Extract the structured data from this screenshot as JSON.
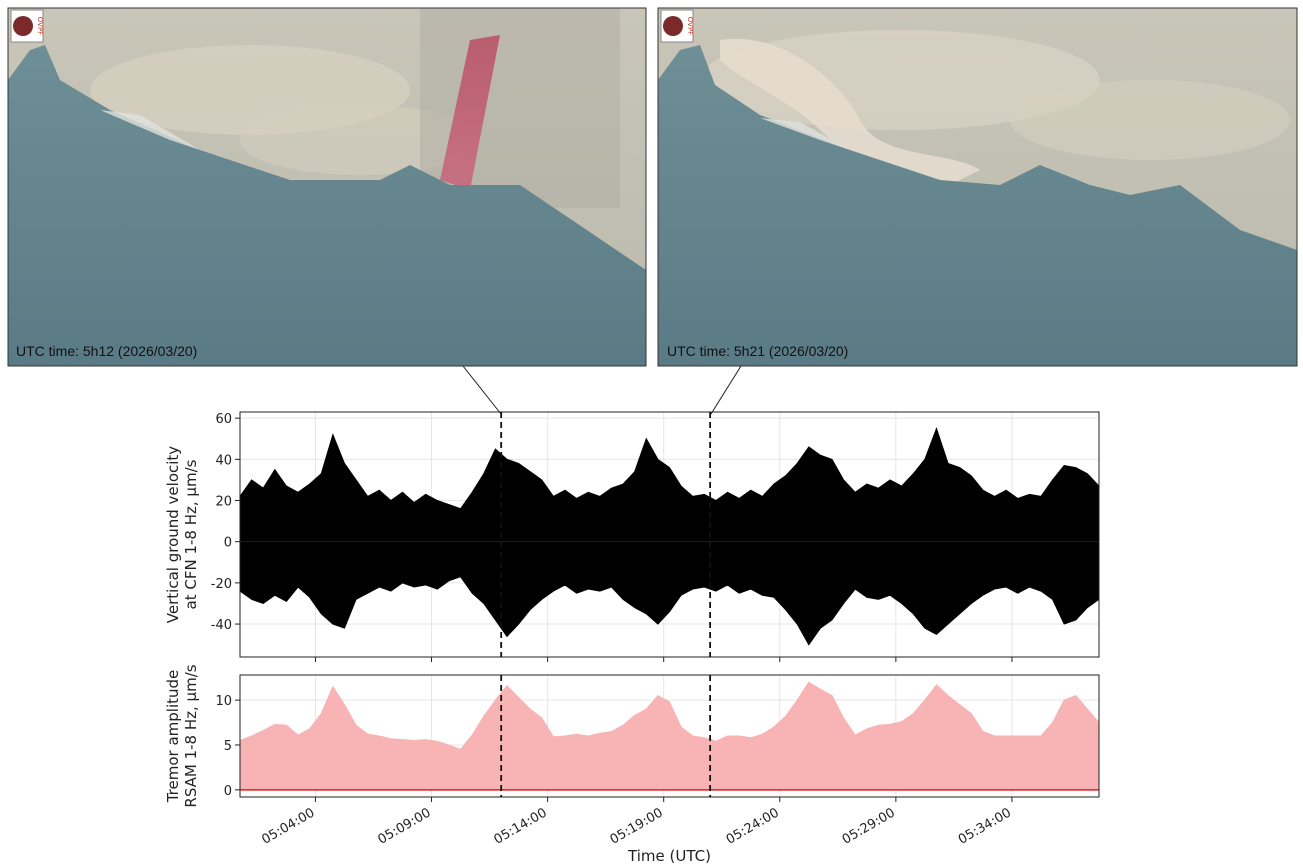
{
  "photos": [
    {
      "caption": "UTC time: 5h12 (2026/03/20)",
      "logo": "OVPF"
    },
    {
      "caption": "UTC time: 5h21 (2026/03/20)",
      "logo": "OVPF"
    }
  ],
  "chart_data": [
    {
      "type": "area",
      "ylabel": [
        "Vertical ground velocity",
        "at CFN 1-8 Hz, µm/s"
      ],
      "x": [
        "05:00:45",
        "05:01:15",
        "05:01:45",
        "05:02:15",
        "05:02:45",
        "05:03:15",
        "05:03:45",
        "05:04:15",
        "05:04:45",
        "05:05:15",
        "05:05:45",
        "05:06:15",
        "05:06:45",
        "05:07:15",
        "05:07:45",
        "05:08:15",
        "05:08:45",
        "05:09:15",
        "05:09:45",
        "05:10:15",
        "05:10:45",
        "05:11:15",
        "05:11:45",
        "05:12:15",
        "05:12:45",
        "05:13:15",
        "05:13:45",
        "05:14:15",
        "05:14:45",
        "05:15:15",
        "05:15:45",
        "05:16:15",
        "05:16:45",
        "05:17:15",
        "05:17:45",
        "05:18:15",
        "05:18:45",
        "05:19:15",
        "05:19:45",
        "05:20:15",
        "05:20:45",
        "05:21:15",
        "05:21:45",
        "05:22:15",
        "05:22:45",
        "05:23:15",
        "05:23:45",
        "05:24:15",
        "05:24:45",
        "05:25:15",
        "05:25:45",
        "05:26:15",
        "05:26:45",
        "05:27:15",
        "05:27:45",
        "05:28:15",
        "05:28:45",
        "05:29:15",
        "05:29:45",
        "05:30:15",
        "05:30:45",
        "05:31:15",
        "05:31:45",
        "05:32:15",
        "05:32:45",
        "05:33:15",
        "05:33:45",
        "05:34:15",
        "05:34:45",
        "05:35:15",
        "05:35:45",
        "05:36:15",
        "05:36:45",
        "05:37:15",
        "05:37:45"
      ],
      "series": [
        {
          "color": "#000000",
          "values": [
            22,
            30,
            26,
            35,
            27,
            24,
            28,
            33,
            52,
            38,
            30,
            22,
            25,
            20,
            24,
            19,
            23,
            20,
            18,
            16,
            24,
            33,
            45,
            40,
            38,
            34,
            30,
            22,
            25,
            21,
            24,
            22,
            26,
            28,
            34,
            50,
            40,
            36,
            27,
            22,
            23,
            20,
            24,
            21,
            25,
            22,
            28,
            32,
            38,
            46,
            42,
            40,
            30,
            24,
            28,
            26,
            30,
            27,
            33,
            40,
            55,
            38,
            36,
            32,
            25,
            22,
            25,
            21,
            23,
            22,
            30,
            37,
            36,
            33,
            27
          ]
        },
        {
          "color": "#000000",
          "values": [
            -24,
            -28,
            -30,
            -26,
            -29,
            -22,
            -27,
            -35,
            -40,
            -42,
            -28,
            -25,
            -22,
            -24,
            -20,
            -22,
            -21,
            -23,
            -19,
            -17,
            -25,
            -30,
            -38,
            -46,
            -40,
            -33,
            -28,
            -24,
            -21,
            -25,
            -23,
            -24,
            -22,
            -28,
            -32,
            -35,
            -40,
            -34,
            -26,
            -23,
            -22,
            -24,
            -21,
            -25,
            -23,
            -26,
            -27,
            -33,
            -40,
            -50,
            -42,
            -38,
            -30,
            -23,
            -27,
            -28,
            -26,
            -30,
            -35,
            -42,
            -45,
            -40,
            -35,
            -30,
            -26,
            -23,
            -22,
            -25,
            -22,
            -24,
            -28,
            -40,
            -38,
            -32,
            -28
          ]
        }
      ],
      "xlim": [
        "05:00:45",
        "05:37:45"
      ],
      "xticks": [
        "05:04:00",
        "05:09:00",
        "05:14:00",
        "05:19:00",
        "05:24:00",
        "05:29:00",
        "05:34:00"
      ],
      "xtick_labels": false,
      "ylim": [
        -56,
        63
      ],
      "yticks": [
        -40,
        -20,
        0,
        20,
        40,
        60
      ],
      "grid": true,
      "vlines": [
        "05:12:00",
        "05:21:00"
      ]
    },
    {
      "type": "area",
      "ylabel": [
        "Tremor amplitude",
        "RSAM 1-8 Hz, µm/s"
      ],
      "xlabel": "Time (UTC)",
      "x": [
        "05:00:45",
        "05:01:15",
        "05:01:45",
        "05:02:15",
        "05:02:45",
        "05:03:15",
        "05:03:45",
        "05:04:15",
        "05:04:45",
        "05:05:15",
        "05:05:45",
        "05:06:15",
        "05:06:45",
        "05:07:15",
        "05:07:45",
        "05:08:15",
        "05:08:45",
        "05:09:15",
        "05:09:45",
        "05:10:15",
        "05:10:45",
        "05:11:15",
        "05:11:45",
        "05:12:15",
        "05:12:45",
        "05:13:15",
        "05:13:45",
        "05:14:15",
        "05:14:45",
        "05:15:15",
        "05:15:45",
        "05:16:15",
        "05:16:45",
        "05:17:15",
        "05:17:45",
        "05:18:15",
        "05:18:45",
        "05:19:15",
        "05:19:45",
        "05:20:15",
        "05:20:45",
        "05:21:15",
        "05:21:45",
        "05:22:15",
        "05:22:45",
        "05:23:15",
        "05:23:45",
        "05:24:15",
        "05:24:45",
        "05:25:15",
        "05:25:45",
        "05:26:15",
        "05:26:45",
        "05:27:15",
        "05:27:45",
        "05:28:15",
        "05:28:45",
        "05:29:15",
        "05:29:45",
        "05:30:15",
        "05:30:45",
        "05:31:15",
        "05:31:45",
        "05:32:15",
        "05:32:45",
        "05:33:15",
        "05:33:45",
        "05:34:15",
        "05:34:45",
        "05:35:15",
        "05:35:45",
        "05:36:15",
        "05:36:45",
        "05:37:15",
        "05:37:45"
      ],
      "series": [
        {
          "color": "#f8b4b4",
          "values": [
            5.5,
            6.0,
            6.6,
            7.3,
            7.2,
            6.1,
            6.8,
            8.5,
            11.5,
            9.5,
            7.2,
            6.2,
            6.0,
            5.7,
            5.6,
            5.5,
            5.6,
            5.4,
            5.0,
            4.5,
            6.1,
            8.2,
            10.0,
            11.6,
            10.3,
            9.0,
            8.0,
            5.9,
            6.0,
            6.2,
            6.0,
            6.3,
            6.5,
            7.2,
            8.3,
            9.0,
            10.5,
            9.8,
            7.0,
            6.0,
            5.8,
            5.4,
            6.0,
            6.0,
            5.8,
            6.2,
            7.0,
            8.2,
            10.0,
            12.0,
            11.2,
            10.5,
            8.0,
            6.1,
            6.8,
            7.2,
            7.3,
            7.6,
            8.5,
            10.0,
            11.7,
            10.5,
            9.5,
            8.5,
            6.5,
            6.0,
            6.0,
            6.0,
            6.0,
            6.0,
            7.5,
            10.0,
            10.5,
            9.0,
            7.5
          ]
        }
      ],
      "xlim": [
        "05:00:45",
        "05:37:45"
      ],
      "xticks": [
        "05:04:00",
        "05:09:00",
        "05:14:00",
        "05:19:00",
        "05:24:00",
        "05:29:00",
        "05:34:00"
      ],
      "xtick_labels": true,
      "ylim": [
        -0.8,
        12.8
      ],
      "yticks": [
        0,
        5,
        10
      ],
      "grid": true,
      "hline": 0,
      "hline_color": "#e31a1c",
      "vlines": [
        "05:12:00",
        "05:21:00"
      ]
    }
  ]
}
